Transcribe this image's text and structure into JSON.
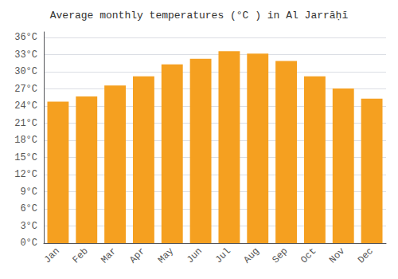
{
  "chart_data": {
    "type": "bar",
    "title": "Average monthly temperatures (°C ) in Al Jarrāḥī",
    "categories": [
      "Jan",
      "Feb",
      "Mar",
      "Apr",
      "May",
      "Jun",
      "Jul",
      "Aug",
      "Sep",
      "Oct",
      "Nov",
      "Dec"
    ],
    "values": [
      24.8,
      25.7,
      27.6,
      29.2,
      31.3,
      32.3,
      33.6,
      33.2,
      31.9,
      29.2,
      27.1,
      25.3
    ],
    "color": "#F5A020",
    "ylim": [
      0,
      37
    ],
    "yticks": [
      {
        "value": 0,
        "label": "0°C"
      },
      {
        "value": 3,
        "label": "3°C"
      },
      {
        "value": 6,
        "label": "6°C"
      },
      {
        "value": 9,
        "label": "9°C"
      },
      {
        "value": 12,
        "label": "12°C"
      },
      {
        "value": 15,
        "label": "15°C"
      },
      {
        "value": 18,
        "label": "18°C"
      },
      {
        "value": 21,
        "label": "21°C"
      },
      {
        "value": 24,
        "label": "24°C"
      },
      {
        "value": 27,
        "label": "27°C"
      },
      {
        "value": 30,
        "label": "30°C"
      },
      {
        "value": 33,
        "label": "33°C"
      },
      {
        "value": 36,
        "label": "36°C"
      }
    ],
    "grid": true
  }
}
